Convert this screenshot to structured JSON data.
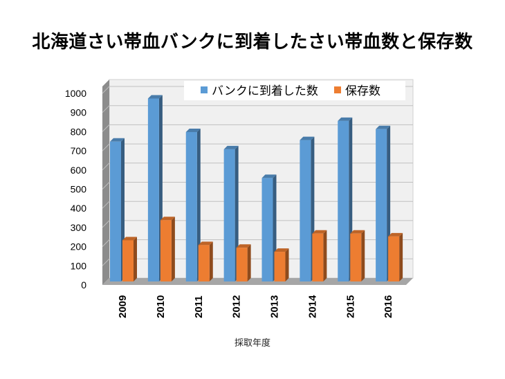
{
  "title": "北海道さい帯血バンクに到着したさい帯血数と保存数",
  "chart_data": {
    "type": "bar",
    "style": "3d-clustered-column",
    "categories": [
      "2009",
      "2010",
      "2011",
      "2012",
      "2013",
      "2014",
      "2015",
      "2016"
    ],
    "series": [
      {
        "name": "バンクに到着した数",
        "color": "#5B9BD5",
        "values": [
          730,
          955,
          780,
          690,
          540,
          738,
          838,
          795
        ]
      },
      {
        "name": "保存数",
        "color": "#ED7D31",
        "values": [
          215,
          320,
          190,
          176,
          155,
          250,
          250,
          235
        ]
      }
    ],
    "xlabel": "採取年度",
    "ylabel": "",
    "ylim": [
      0,
      1000
    ],
    "yticks": [
      0,
      100,
      200,
      300,
      400,
      500,
      600,
      700,
      800,
      900,
      1000
    ],
    "grid": true,
    "legend": "top-right"
  }
}
